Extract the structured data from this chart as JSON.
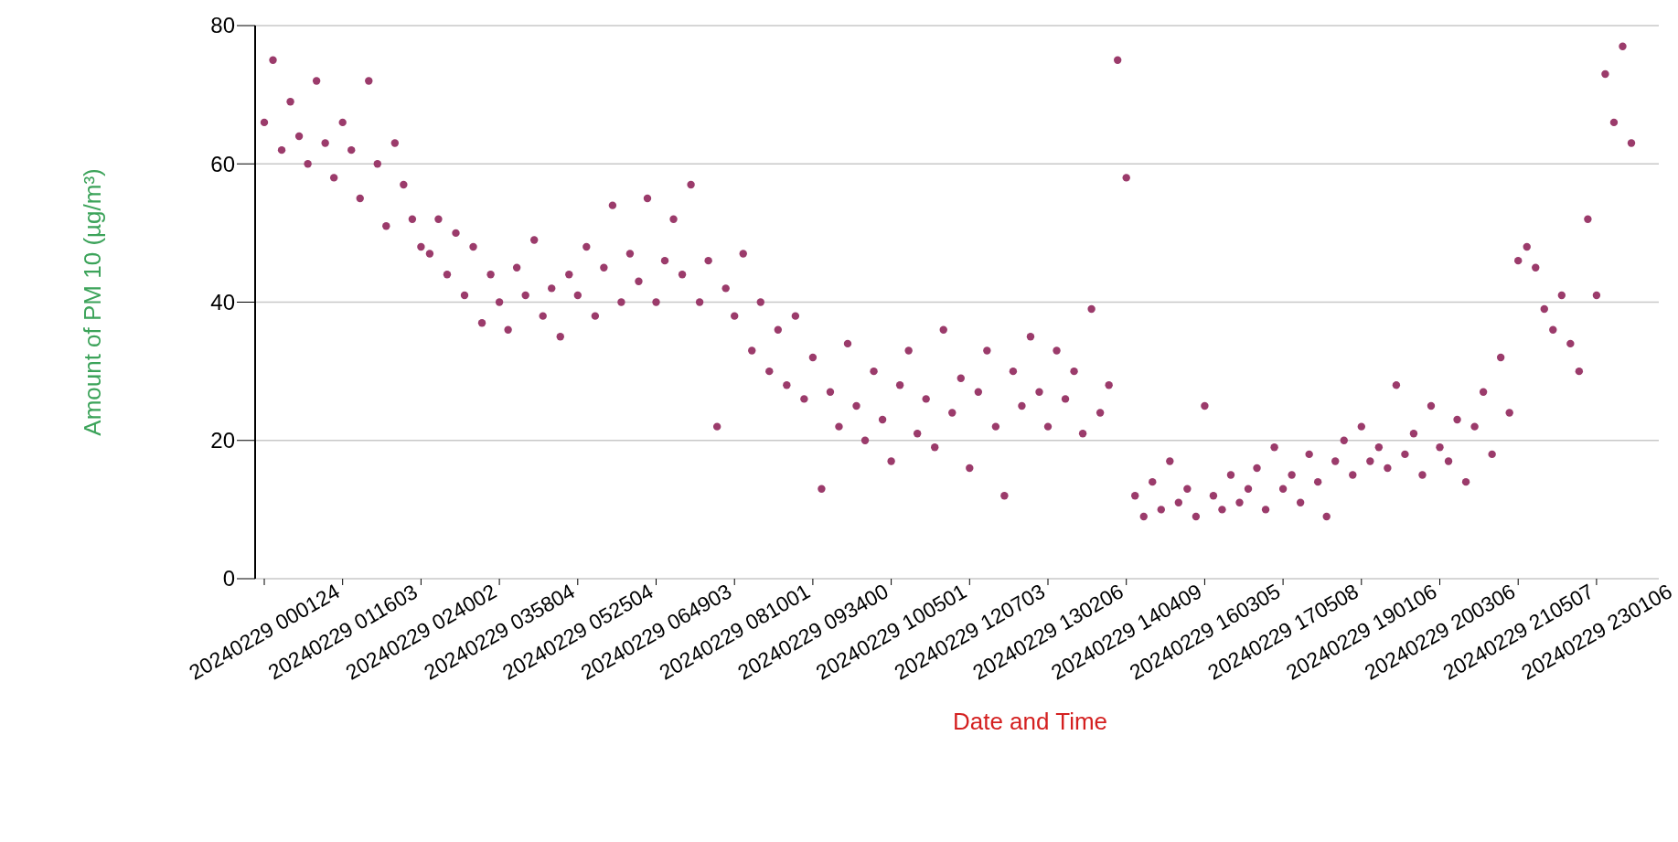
{
  "chart_data": {
    "type": "scatter",
    "xlabel": "Date and Time",
    "ylabel": "Amount of PM 10 (µg/m³)",
    "categories": [
      "20240229 000124",
      null,
      null,
      null,
      null,
      null,
      null,
      null,
      null,
      "20240229 011603",
      null,
      null,
      null,
      null,
      null,
      null,
      null,
      null,
      "20240229 024002",
      null,
      null,
      null,
      null,
      null,
      null,
      null,
      null,
      "20240229 035804",
      null,
      null,
      null,
      null,
      null,
      null,
      null,
      null,
      "20240229 052504",
      null,
      null,
      null,
      null,
      null,
      null,
      null,
      null,
      "20240229 064903",
      null,
      null,
      null,
      null,
      null,
      null,
      null,
      null,
      "20240229 081001",
      null,
      null,
      null,
      null,
      null,
      null,
      null,
      null,
      "20240229 093400",
      null,
      null,
      null,
      null,
      null,
      null,
      null,
      null,
      "20240229 100501",
      null,
      null,
      null,
      null,
      null,
      null,
      null,
      null,
      "20240229 120703",
      null,
      null,
      null,
      null,
      null,
      null,
      null,
      null,
      "20240229 130206",
      null,
      null,
      null,
      null,
      null,
      null,
      null,
      null,
      "20240229 140409",
      null,
      null,
      null,
      null,
      null,
      null,
      null,
      null,
      "20240229 160305",
      null,
      null,
      null,
      null,
      null,
      null,
      null,
      null,
      "20240229 170508",
      null,
      null,
      null,
      null,
      null,
      null,
      null,
      null,
      "20240229 190106",
      null,
      null,
      null,
      null,
      null,
      null,
      null,
      null,
      "20240229 200306",
      null,
      null,
      null,
      null,
      null,
      null,
      null,
      null,
      "20240229 210507",
      null,
      null,
      null,
      null,
      null,
      null,
      null,
      null,
      "20240229 230106",
      null,
      null,
      null,
      null
    ],
    "series": [
      {
        "color": "#9b3b6b",
        "values": [
          66,
          75,
          62,
          69,
          64,
          60,
          72,
          63,
          58,
          66,
          62,
          55,
          72,
          60,
          51,
          63,
          57,
          52,
          48,
          47,
          52,
          44,
          50,
          41,
          48,
          37,
          44,
          40,
          36,
          45,
          41,
          49,
          38,
          42,
          35,
          44,
          41,
          48,
          38,
          45,
          54,
          40,
          47,
          43,
          55,
          40,
          46,
          52,
          44,
          57,
          40,
          46,
          22,
          42,
          38,
          47,
          33,
          40,
          30,
          36,
          28,
          38,
          26,
          32,
          13,
          27,
          22,
          34,
          25,
          20,
          30,
          23,
          17,
          28,
          33,
          21,
          26,
          19,
          36,
          24,
          29,
          16,
          27,
          33,
          22,
          12,
          30,
          25,
          35,
          27,
          22,
          33,
          26,
          30,
          21,
          39,
          24,
          28,
          75,
          58,
          12,
          9,
          14,
          10,
          17,
          11,
          13,
          9,
          25,
          12,
          10,
          15,
          11,
          13,
          16,
          10,
          19,
          13,
          15,
          11,
          18,
          14,
          9,
          17,
          20,
          15,
          22,
          17,
          19,
          16,
          28,
          18,
          21,
          15,
          25,
          19,
          17,
          23,
          14,
          22,
          27,
          18,
          32,
          24,
          46,
          48,
          45,
          39,
          36,
          41,
          34,
          30,
          52,
          41,
          73,
          66,
          77,
          63
        ]
      }
    ],
    "ylim": [
      0,
      80
    ],
    "yticks": [
      0,
      20,
      40,
      60,
      80
    ],
    "grid": "y",
    "marker": "circle"
  }
}
